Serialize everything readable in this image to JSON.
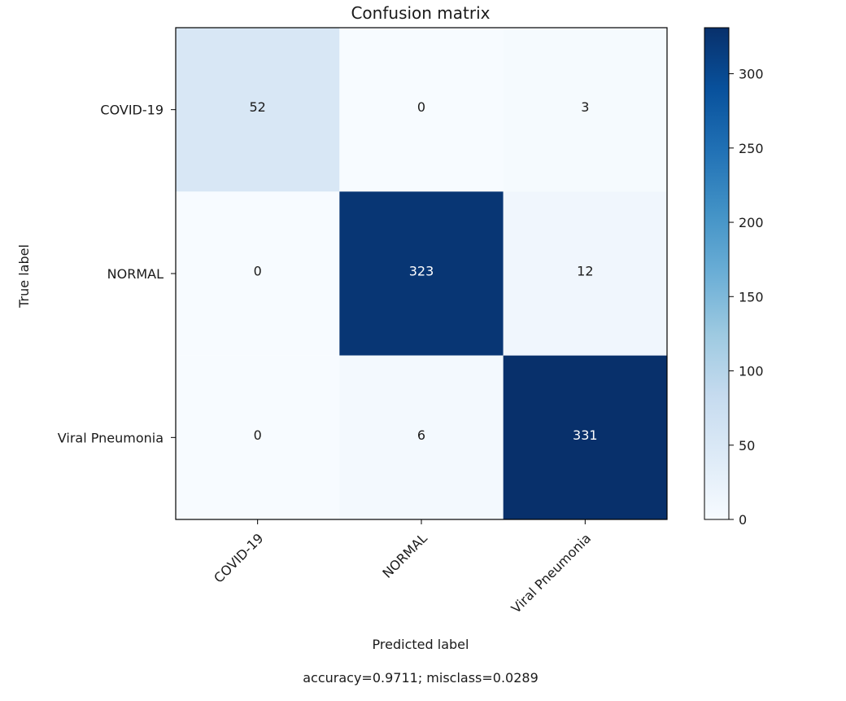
{
  "chart_data": {
    "type": "heatmap",
    "title": "Confusion matrix",
    "xlabel": "Predicted label",
    "ylabel": "True label",
    "x_categories": [
      "COVID-19",
      "NORMAL",
      "Viral Pneumonia"
    ],
    "y_categories": [
      "COVID-19",
      "NORMAL",
      "Viral Pneumonia"
    ],
    "values": [
      [
        52,
        0,
        3
      ],
      [
        0,
        323,
        12
      ],
      [
        0,
        6,
        331
      ]
    ],
    "colormap": "Blues",
    "colorbar": {
      "range": [
        0,
        331
      ],
      "ticks": [
        0,
        50,
        100,
        150,
        200,
        250,
        300
      ]
    },
    "grid": false,
    "footer": "accuracy=0.9711; misclass=0.0289"
  }
}
